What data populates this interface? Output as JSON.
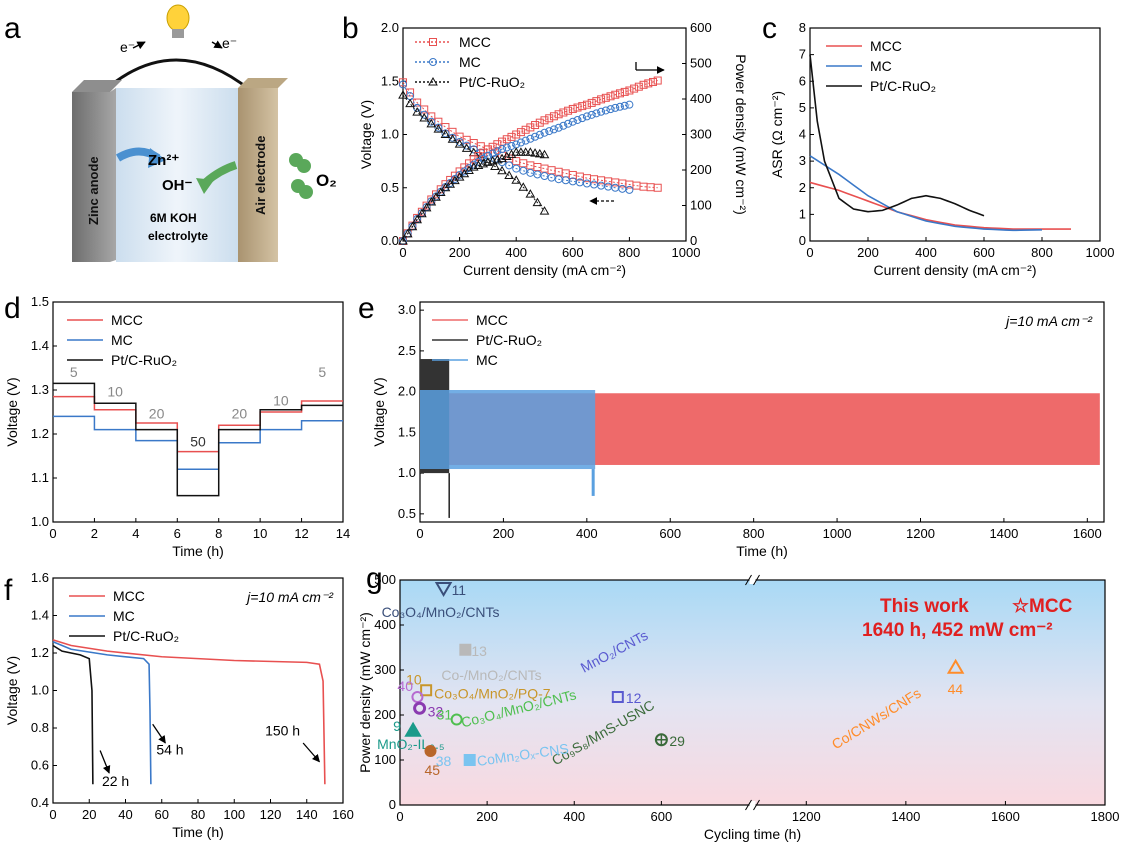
{
  "panel_letters": [
    "a",
    "b",
    "c",
    "d",
    "e",
    "f",
    "g"
  ],
  "schematic": {
    "electron_left": "e⁻",
    "electron_right": "e⁻",
    "anode_label": "Zinc anode",
    "cathode_label": "Air electrode",
    "zn_ion": "Zn²⁺",
    "hydroxide": "OH⁻",
    "oxygen": "O₂",
    "electrolyte_line1": "6M KOH",
    "electrolyte_line2": "electrolyte"
  },
  "chart_data": [
    {
      "id": "b",
      "type": "line",
      "xlabel": "Current density (mA cm⁻²)",
      "ylabel": "Voltage (V)",
      "ylabel2": "Power density (mW cm⁻²)",
      "xlim": [
        0,
        1000
      ],
      "ylim": [
        0,
        2.0
      ],
      "ylim2": [
        0,
        600
      ],
      "xticks": [
        "0",
        "200",
        "400",
        "600",
        "800",
        "1000"
      ],
      "yticks": [
        "0.0",
        "0.5",
        "1.0",
        "1.5",
        "2.0"
      ],
      "yticks2": [
        "0",
        "100",
        "200",
        "300",
        "400",
        "500",
        "600"
      ],
      "legend": [
        "MCC",
        "MC",
        "Pt/C-RuO₂"
      ],
      "colors": [
        "#e85050",
        "#3a78c8",
        "#111111"
      ],
      "voltage_series": [
        {
          "name": "MCC",
          "x": [
            0,
            50,
            100,
            150,
            200,
            250,
            300,
            350,
            400,
            450,
            500,
            550,
            600,
            650,
            700,
            750,
            800,
            850,
            900
          ],
          "values": [
            1.49,
            1.3,
            1.17,
            1.07,
            0.98,
            0.92,
            0.86,
            0.8,
            0.75,
            0.71,
            0.68,
            0.65,
            0.62,
            0.59,
            0.57,
            0.55,
            0.53,
            0.51,
            0.5
          ]
        },
        {
          "name": "MC",
          "x": [
            0,
            50,
            100,
            150,
            200,
            250,
            300,
            350,
            400,
            450,
            500,
            550,
            600,
            650,
            700,
            750,
            800
          ],
          "values": [
            1.47,
            1.25,
            1.12,
            1.01,
            0.93,
            0.86,
            0.8,
            0.74,
            0.68,
            0.64,
            0.61,
            0.58,
            0.56,
            0.54,
            0.52,
            0.5,
            0.48
          ]
        },
        {
          "name": "Pt/C-RuO₂",
          "x": [
            0,
            50,
            100,
            150,
            200,
            250,
            300,
            350,
            400,
            450,
            500
          ],
          "values": [
            1.37,
            1.21,
            1.1,
            1.0,
            0.91,
            0.83,
            0.74,
            0.66,
            0.57,
            0.44,
            0.28
          ]
        }
      ],
      "power_series": [
        {
          "name": "MCC",
          "x": [
            0,
            50,
            100,
            150,
            200,
            250,
            300,
            350,
            400,
            450,
            500,
            550,
            600,
            650,
            700,
            750,
            800,
            850,
            900
          ],
          "values": [
            0,
            65,
            117,
            160,
            196,
            230,
            258,
            280,
            300,
            320,
            340,
            357,
            372,
            384,
            399,
            412,
            424,
            440,
            452
          ]
        },
        {
          "name": "MC",
          "x": [
            0,
            50,
            100,
            150,
            200,
            250,
            300,
            350,
            400,
            450,
            500,
            550,
            600,
            650,
            700,
            750,
            800
          ],
          "values": [
            0,
            62,
            112,
            152,
            186,
            215,
            240,
            259,
            272,
            288,
            305,
            319,
            336,
            351,
            364,
            375,
            384
          ]
        },
        {
          "name": "Pt/C-RuO₂",
          "x": [
            0,
            50,
            100,
            150,
            200,
            250,
            300,
            350,
            400,
            450,
            500
          ],
          "values": [
            0,
            60,
            110,
            150,
            180,
            208,
            222,
            232,
            250,
            250,
            243
          ]
        }
      ]
    },
    {
      "id": "c",
      "type": "line",
      "xlabel": "Current density (mA cm⁻²)",
      "ylabel": "ASR (Ω cm⁻²)",
      "xlim": [
        0,
        1000
      ],
      "ylim": [
        0,
        8
      ],
      "xticks": [
        "0",
        "200",
        "400",
        "600",
        "800",
        "1000"
      ],
      "yticks": [
        "0",
        "1",
        "2",
        "3",
        "4",
        "5",
        "6",
        "7",
        "8"
      ],
      "legend": [
        "MCC",
        "MC",
        "Pt/C-RuO₂"
      ],
      "colors": [
        "#e85050",
        "#3a78c8",
        "#111111"
      ],
      "series": [
        {
          "name": "MCC",
          "x": [
            0,
            100,
            200,
            300,
            400,
            500,
            600,
            700,
            800,
            900
          ],
          "values": [
            2.2,
            1.9,
            1.5,
            1.1,
            0.8,
            0.6,
            0.5,
            0.45,
            0.45,
            0.45
          ]
        },
        {
          "name": "MC",
          "x": [
            0,
            100,
            200,
            300,
            400,
            500,
            600,
            700,
            800
          ],
          "values": [
            3.2,
            2.5,
            1.7,
            1.1,
            0.75,
            0.55,
            0.45,
            0.4,
            0.42
          ]
        },
        {
          "name": "Pt/C-RuO₂",
          "x": [
            0,
            25,
            50,
            100,
            150,
            200,
            250,
            300,
            350,
            400,
            450,
            500,
            550,
            600
          ],
          "values": [
            7.0,
            4.5,
            3.0,
            1.6,
            1.2,
            1.1,
            1.15,
            1.35,
            1.6,
            1.7,
            1.6,
            1.4,
            1.15,
            0.95
          ]
        }
      ]
    },
    {
      "id": "d",
      "type": "line",
      "xlabel": "Time (h)",
      "ylabel": "Voltage (V)",
      "xlim": [
        0,
        14
      ],
      "ylim": [
        1.0,
        1.5
      ],
      "xticks": [
        "0",
        "2",
        "4",
        "6",
        "8",
        "10",
        "12",
        "14"
      ],
      "yticks": [
        "1.0",
        "1.1",
        "1.2",
        "1.3",
        "1.4",
        "1.5"
      ],
      "legend": [
        "MCC",
        "MC",
        "Pt/C-RuO₂"
      ],
      "colors": [
        "#e85050",
        "#3a78c8",
        "#111111"
      ],
      "step_edges": [
        0,
        2,
        4,
        6,
        8,
        10,
        12,
        14
      ],
      "step_labels": [
        "5",
        "10",
        "20",
        "50",
        "20",
        "10",
        "5"
      ],
      "series": [
        {
          "name": "MCC",
          "values": [
            1.285,
            1.255,
            1.225,
            1.16,
            1.22,
            1.25,
            1.275
          ]
        },
        {
          "name": "MC",
          "values": [
            1.24,
            1.21,
            1.185,
            1.12,
            1.18,
            1.21,
            1.23
          ]
        },
        {
          "name": "Pt/C-RuO₂",
          "values": [
            1.315,
            1.27,
            1.21,
            1.06,
            1.21,
            1.255,
            1.265
          ]
        }
      ]
    },
    {
      "id": "e",
      "type": "area",
      "xlabel": "Time (h)",
      "ylabel": "Voltage (V)",
      "xlim": [
        0,
        1640
      ],
      "ylim": [
        0.4,
        3.1
      ],
      "xticks": [
        "0",
        "200",
        "400",
        "600",
        "800",
        "1000",
        "1200",
        "1400",
        "1600"
      ],
      "yticks": [
        "0.5",
        "1.0",
        "1.5",
        "2.0",
        "2.5",
        "3.0"
      ],
      "annotation": "j=10 mA cm⁻²",
      "legend": [
        "MCC",
        "Pt/C-RuO₂",
        "MC"
      ],
      "colors": [
        "#ee6a6a",
        "#333333",
        "#5aa0e0"
      ],
      "series": [
        {
          "name": "MCC",
          "x": [
            0,
            1630
          ],
          "low": 1.1,
          "high": 1.98
        },
        {
          "name": "Pt/C-RuO₂",
          "x": [
            0,
            70
          ],
          "low": 1.0,
          "high": 2.4
        },
        {
          "name": "MC",
          "x": [
            0,
            420
          ],
          "low": 1.05,
          "high": 2.02
        }
      ]
    },
    {
      "id": "f",
      "type": "line",
      "xlabel": "Time (h)",
      "ylabel": "Voltage (V)",
      "xlim": [
        0,
        160
      ],
      "ylim": [
        0.4,
        1.6
      ],
      "xticks": [
        "0",
        "20",
        "40",
        "60",
        "80",
        "100",
        "120",
        "140",
        "160"
      ],
      "yticks": [
        "0.4",
        "0.6",
        "0.8",
        "1.0",
        "1.2",
        "1.4",
        "1.6"
      ],
      "annotation": "j=10 mA cm⁻²",
      "legend": [
        "MCC",
        "MC",
        "Pt/C-RuO₂"
      ],
      "colors": [
        "#e85050",
        "#3a78c8",
        "#111111"
      ],
      "series": [
        {
          "name": "MCC",
          "x": [
            0,
            10,
            30,
            60,
            100,
            140,
            147,
            149,
            150
          ],
          "values": [
            1.27,
            1.24,
            1.21,
            1.18,
            1.16,
            1.15,
            1.14,
            1.05,
            0.5
          ]
        },
        {
          "name": "MC",
          "x": [
            0,
            10,
            30,
            50,
            53,
            53.5,
            54
          ],
          "values": [
            1.26,
            1.22,
            1.19,
            1.17,
            1.14,
            0.9,
            0.5
          ]
        },
        {
          "name": "Pt/C-RuO₂",
          "x": [
            0,
            5,
            15,
            20,
            21.5,
            22
          ],
          "values": [
            1.24,
            1.21,
            1.19,
            1.17,
            1.0,
            0.5
          ]
        }
      ],
      "callouts": [
        "22 h",
        "54 h",
        "150 h"
      ]
    },
    {
      "id": "g",
      "type": "scatter",
      "xlabel": "Cycling time (h)",
      "ylabel": "Power density (mW cm⁻²)",
      "xlim": [
        0,
        1800
      ],
      "axis_break": [
        800,
        1100
      ],
      "ylim": [
        0,
        500
      ],
      "xticks": [
        "0",
        "200",
        "400",
        "600",
        "1200",
        "1400",
        "1600",
        "1800"
      ],
      "yticks": [
        "0",
        "100",
        "200",
        "300",
        "400",
        "500"
      ],
      "headline_line1": "This work ",
      "headline_star": "☆MCC",
      "headline_line2": "1640 h, 452 mW cm⁻²",
      "points": [
        {
          "ref": "11",
          "name": "Co₃O₄/MnO₂/CNTs",
          "x": 100,
          "y": 480,
          "color": "#3a4f7a"
        },
        {
          "ref": "13",
          "name": "Co-/MnO₂/CNTs",
          "x": 150,
          "y": 345,
          "color": "#b9b9b9"
        },
        {
          "ref": "10",
          "name": "Co₃O₄/MnO₂/PQ-7",
          "x": 60,
          "y": 255,
          "color": "#c8962a"
        },
        {
          "ref": "40",
          "name": "",
          "x": 40,
          "y": 240,
          "color": "#b66ad0"
        },
        {
          "ref": "32",
          "name": "",
          "x": 45,
          "y": 215,
          "color": "#8a3ab0"
        },
        {
          "ref": "12",
          "name": "MnO₂/CNTs",
          "x": 500,
          "y": 240,
          "color": "#5a5ad0"
        },
        {
          "ref": "31",
          "name": "Co₃O₄/MnO₂/CNTs",
          "x": 130,
          "y": 190,
          "color": "#4fbf4f"
        },
        {
          "ref": "9",
          "name": "MnO₂-IL₀.₅",
          "x": 30,
          "y": 165,
          "color": "#1a9a8a"
        },
        {
          "ref": "29",
          "name": "Co₉S₈/MnS-USNC",
          "x": 600,
          "y": 145,
          "color": "#3a6a3a"
        },
        {
          "ref": "45",
          "name": "",
          "x": 70,
          "y": 120,
          "color": "#b8662a"
        },
        {
          "ref": "38",
          "name": "CoMn₂Oₓ-CNS",
          "x": 160,
          "y": 100,
          "color": "#7ac4f0"
        },
        {
          "ref": "44",
          "name": "Co/CNWs/CNFs",
          "x": 1500,
          "y": 305,
          "color": "#ff8c2a"
        }
      ]
    }
  ]
}
